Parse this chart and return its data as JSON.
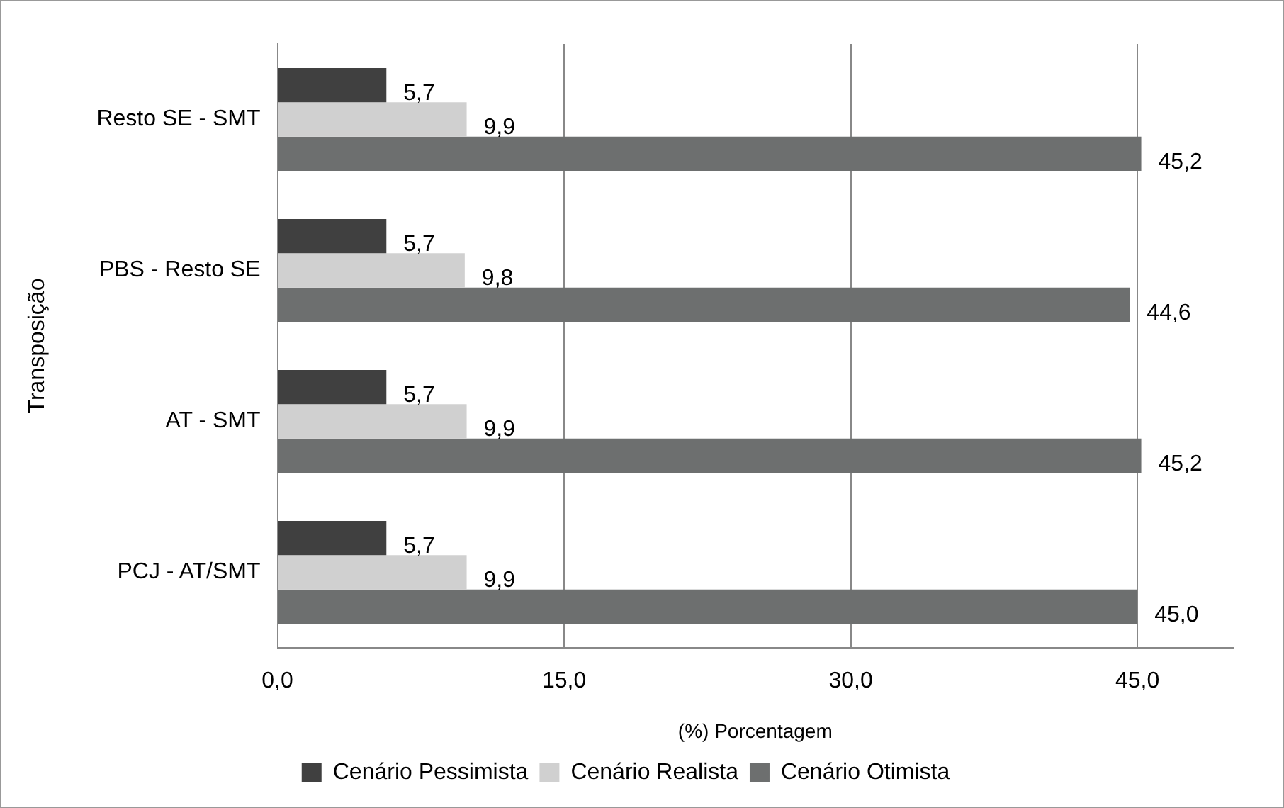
{
  "chart_data": {
    "type": "bar",
    "orientation": "horizontal",
    "ylabel": "Transposição",
    "xlabel": "(%) Porcentagem",
    "categories": [
      "Resto SE - SMT",
      "PBS - Resto SE",
      "AT - SMT",
      "PCJ - AT/SMT"
    ],
    "series": [
      {
        "name": "Cenário Pessimista",
        "color": "#404040",
        "values": [
          5.7,
          5.7,
          5.7,
          5.7
        ],
        "value_labels": [
          "5,7",
          "5,7",
          "5,7",
          "5,7"
        ]
      },
      {
        "name": "Cenário Realista",
        "color": "#d0d0d0",
        "values": [
          9.9,
          9.8,
          9.9,
          9.9
        ],
        "value_labels": [
          "9,9",
          "9,8",
          "9,9",
          "9,9"
        ]
      },
      {
        "name": "Cenário Otimista",
        "color": "#6d6f6f",
        "values": [
          45.2,
          44.6,
          45.2,
          45.0
        ],
        "value_labels": [
          "45,2",
          "44,6",
          "45,2",
          "45,0"
        ]
      }
    ],
    "xlim": [
      0,
      50
    ],
    "xticks": [
      {
        "value": 0,
        "label": "0,0"
      },
      {
        "value": 15,
        "label": "15,0"
      },
      {
        "value": 30,
        "label": "30,0"
      },
      {
        "value": 45,
        "label": "45,0"
      }
    ],
    "grid": "x",
    "legend": "bottom"
  }
}
